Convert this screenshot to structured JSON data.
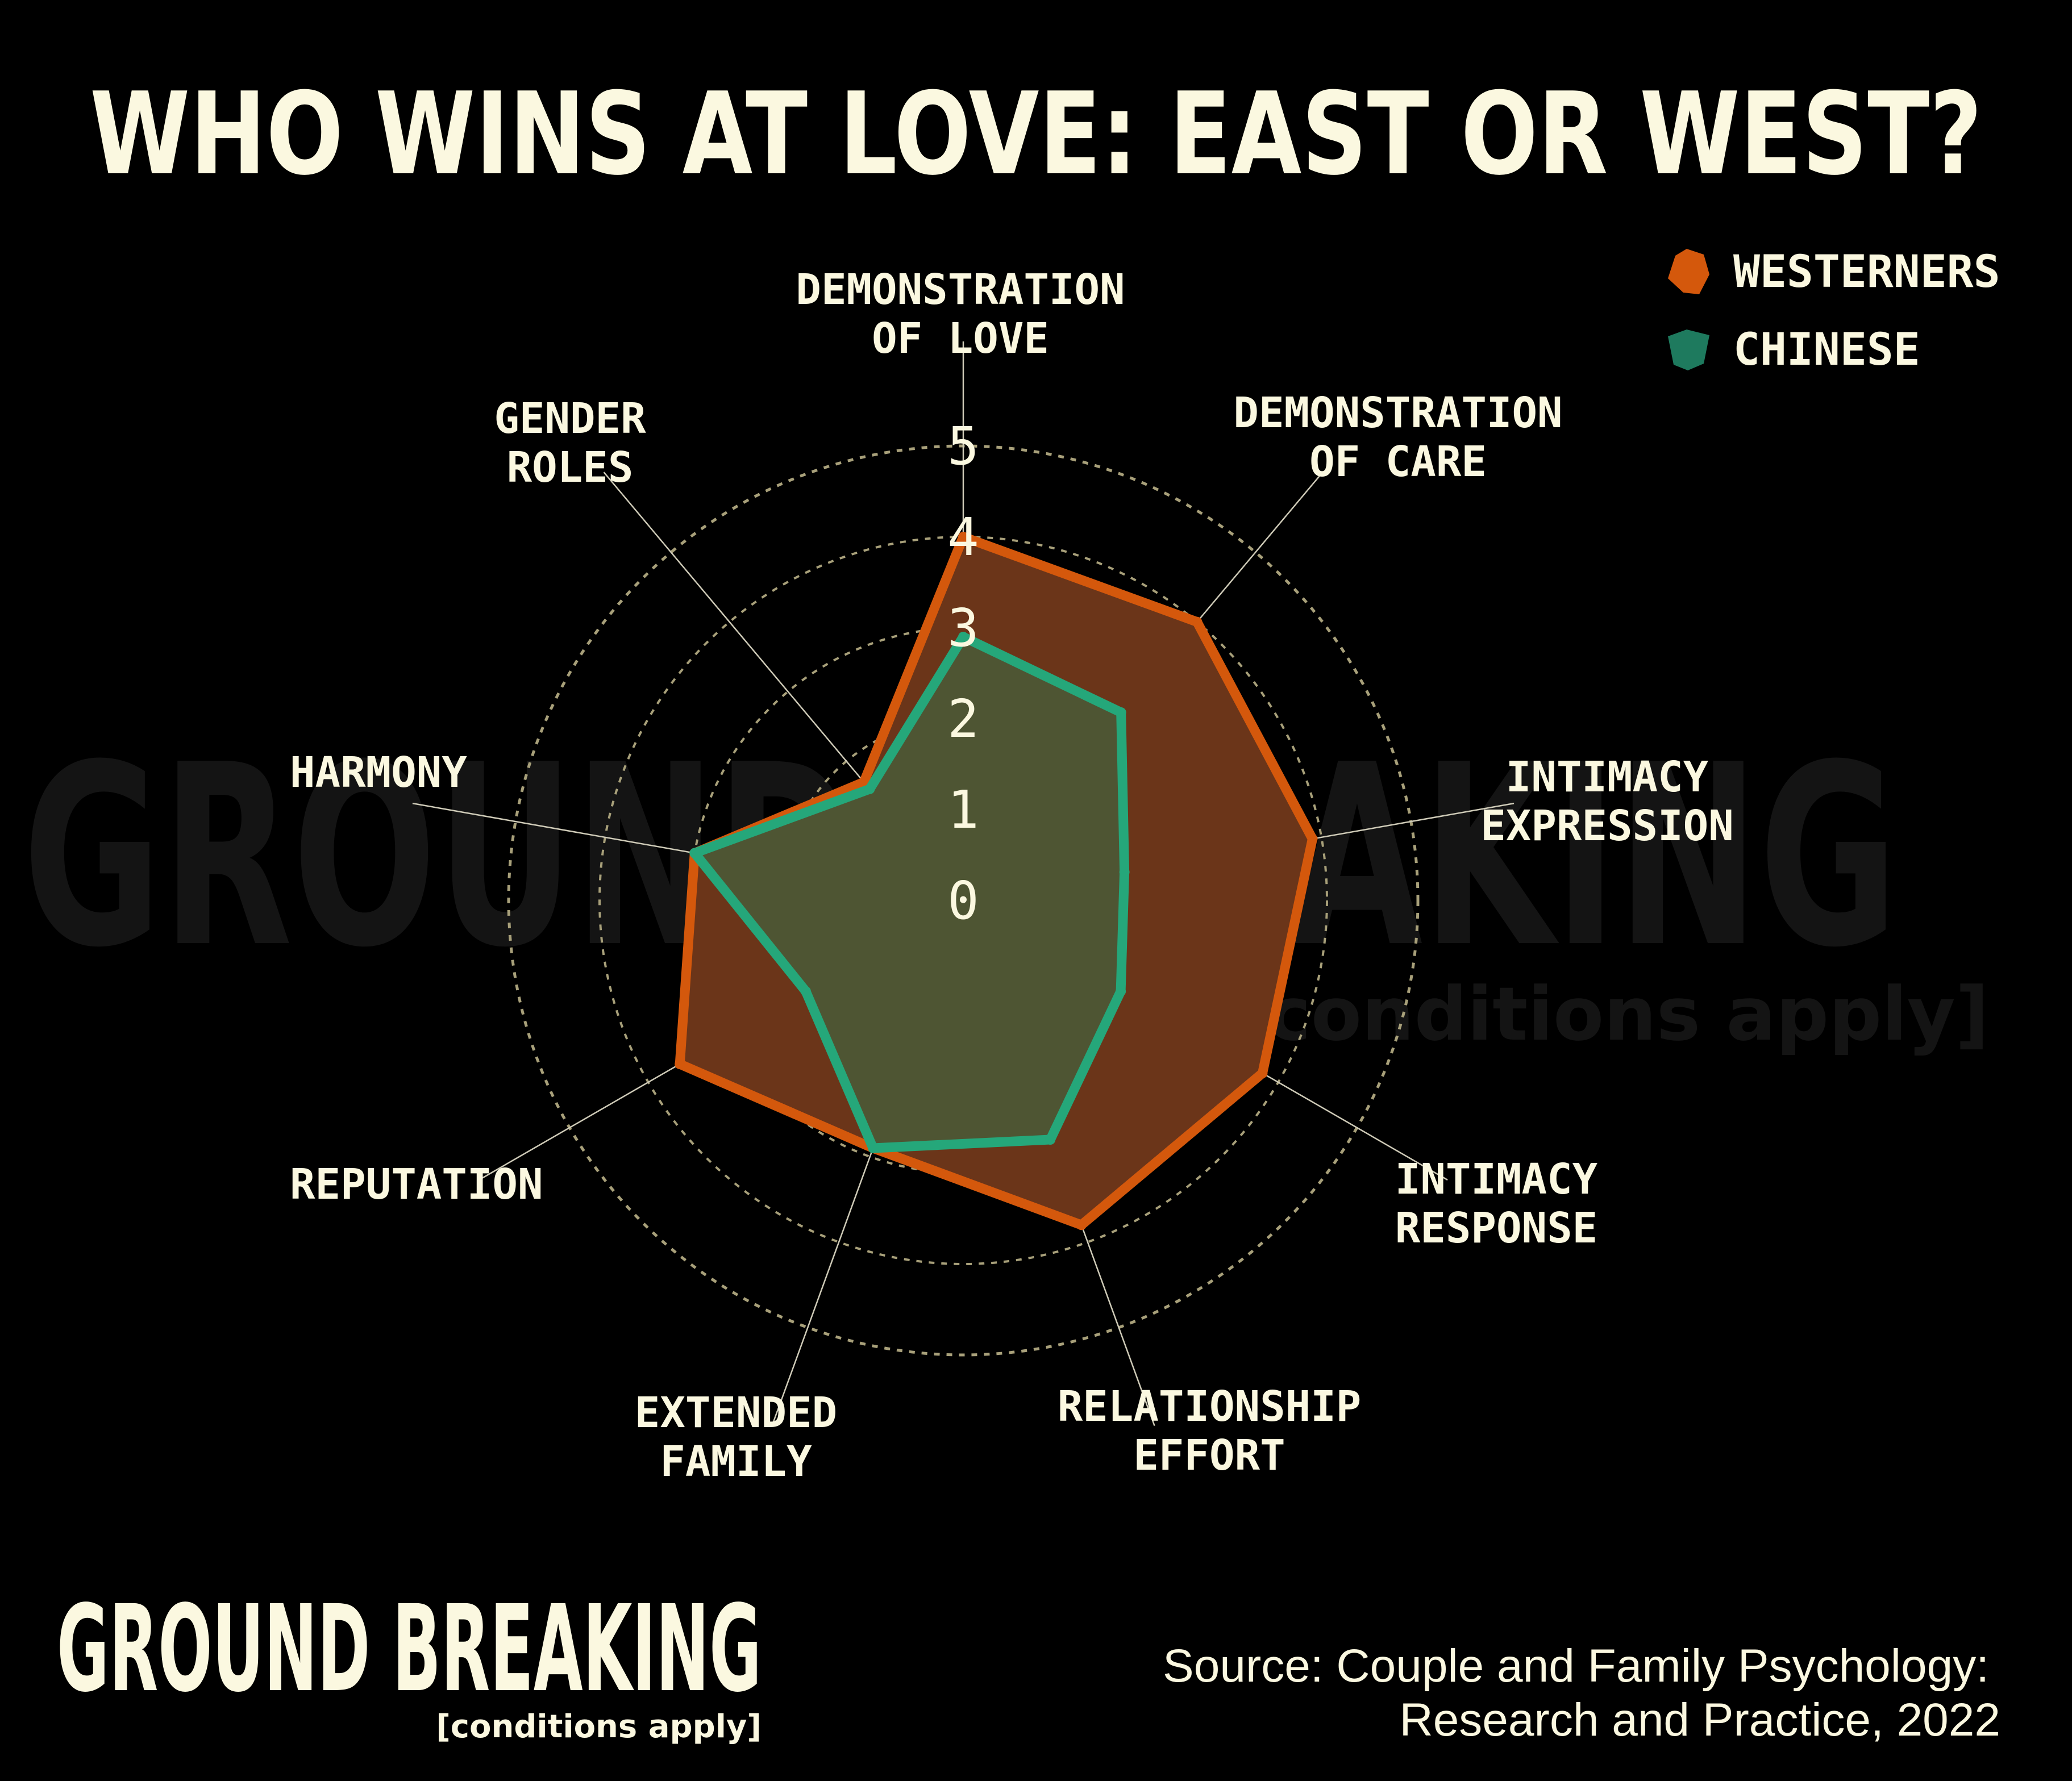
{
  "title": "WHO WINS AT LOVE: EAST OR WEST?",
  "brand": {
    "name": "GROUND BREAKING",
    "tagline": "[conditions apply]"
  },
  "watermark": {
    "name": "GROUND BREAKING",
    "tagline": "[conditions apply]"
  },
  "source": {
    "line1": "Source: Couple and Family Psychology:",
    "line2": "Research and Practice, 2022"
  },
  "legend": [
    {
      "label": "WESTERNERS",
      "color": "#D4580C"
    },
    {
      "label": "CHINESE",
      "color": "#1E7A5E"
    }
  ],
  "chart_data": {
    "type": "radar",
    "title": "WHO WINS AT LOVE: EAST OR WEST?",
    "rlim": [
      0,
      5
    ],
    "ticks": [
      "0",
      "1",
      "2",
      "3",
      "4",
      "5"
    ],
    "categories": [
      [
        "DEMONSTRATION",
        "OF LOVE"
      ],
      [
        "DEMONSTRATION",
        "OF CARE"
      ],
      [
        "INTIMACY",
        "EXPRESSION"
      ],
      [
        "INTIMACY",
        "RESPONSE"
      ],
      [
        "RELATIONSHIP",
        "EFFORT"
      ],
      [
        "EXTENDED",
        "FAMILY"
      ],
      [
        "REPUTATION"
      ],
      [
        "HARMONY"
      ],
      [
        "GENDER",
        "ROLES"
      ]
    ],
    "series": [
      {
        "name": "WESTERNERS",
        "values": [
          4.0,
          4.0,
          3.9,
          3.8,
          3.8,
          2.9,
          3.6,
          3.0,
          1.7
        ],
        "color": "#D4580C",
        "fill": "#6B3519"
      },
      {
        "name": "CHINESE",
        "values": [
          2.9,
          2.7,
          1.8,
          2.0,
          2.8,
          2.9,
          2.0,
          3.0,
          1.6
        ],
        "color": "#25A77A",
        "fill": "#4A5A37"
      }
    ],
    "grid": "dotted circles",
    "legend_position": "top-right"
  }
}
